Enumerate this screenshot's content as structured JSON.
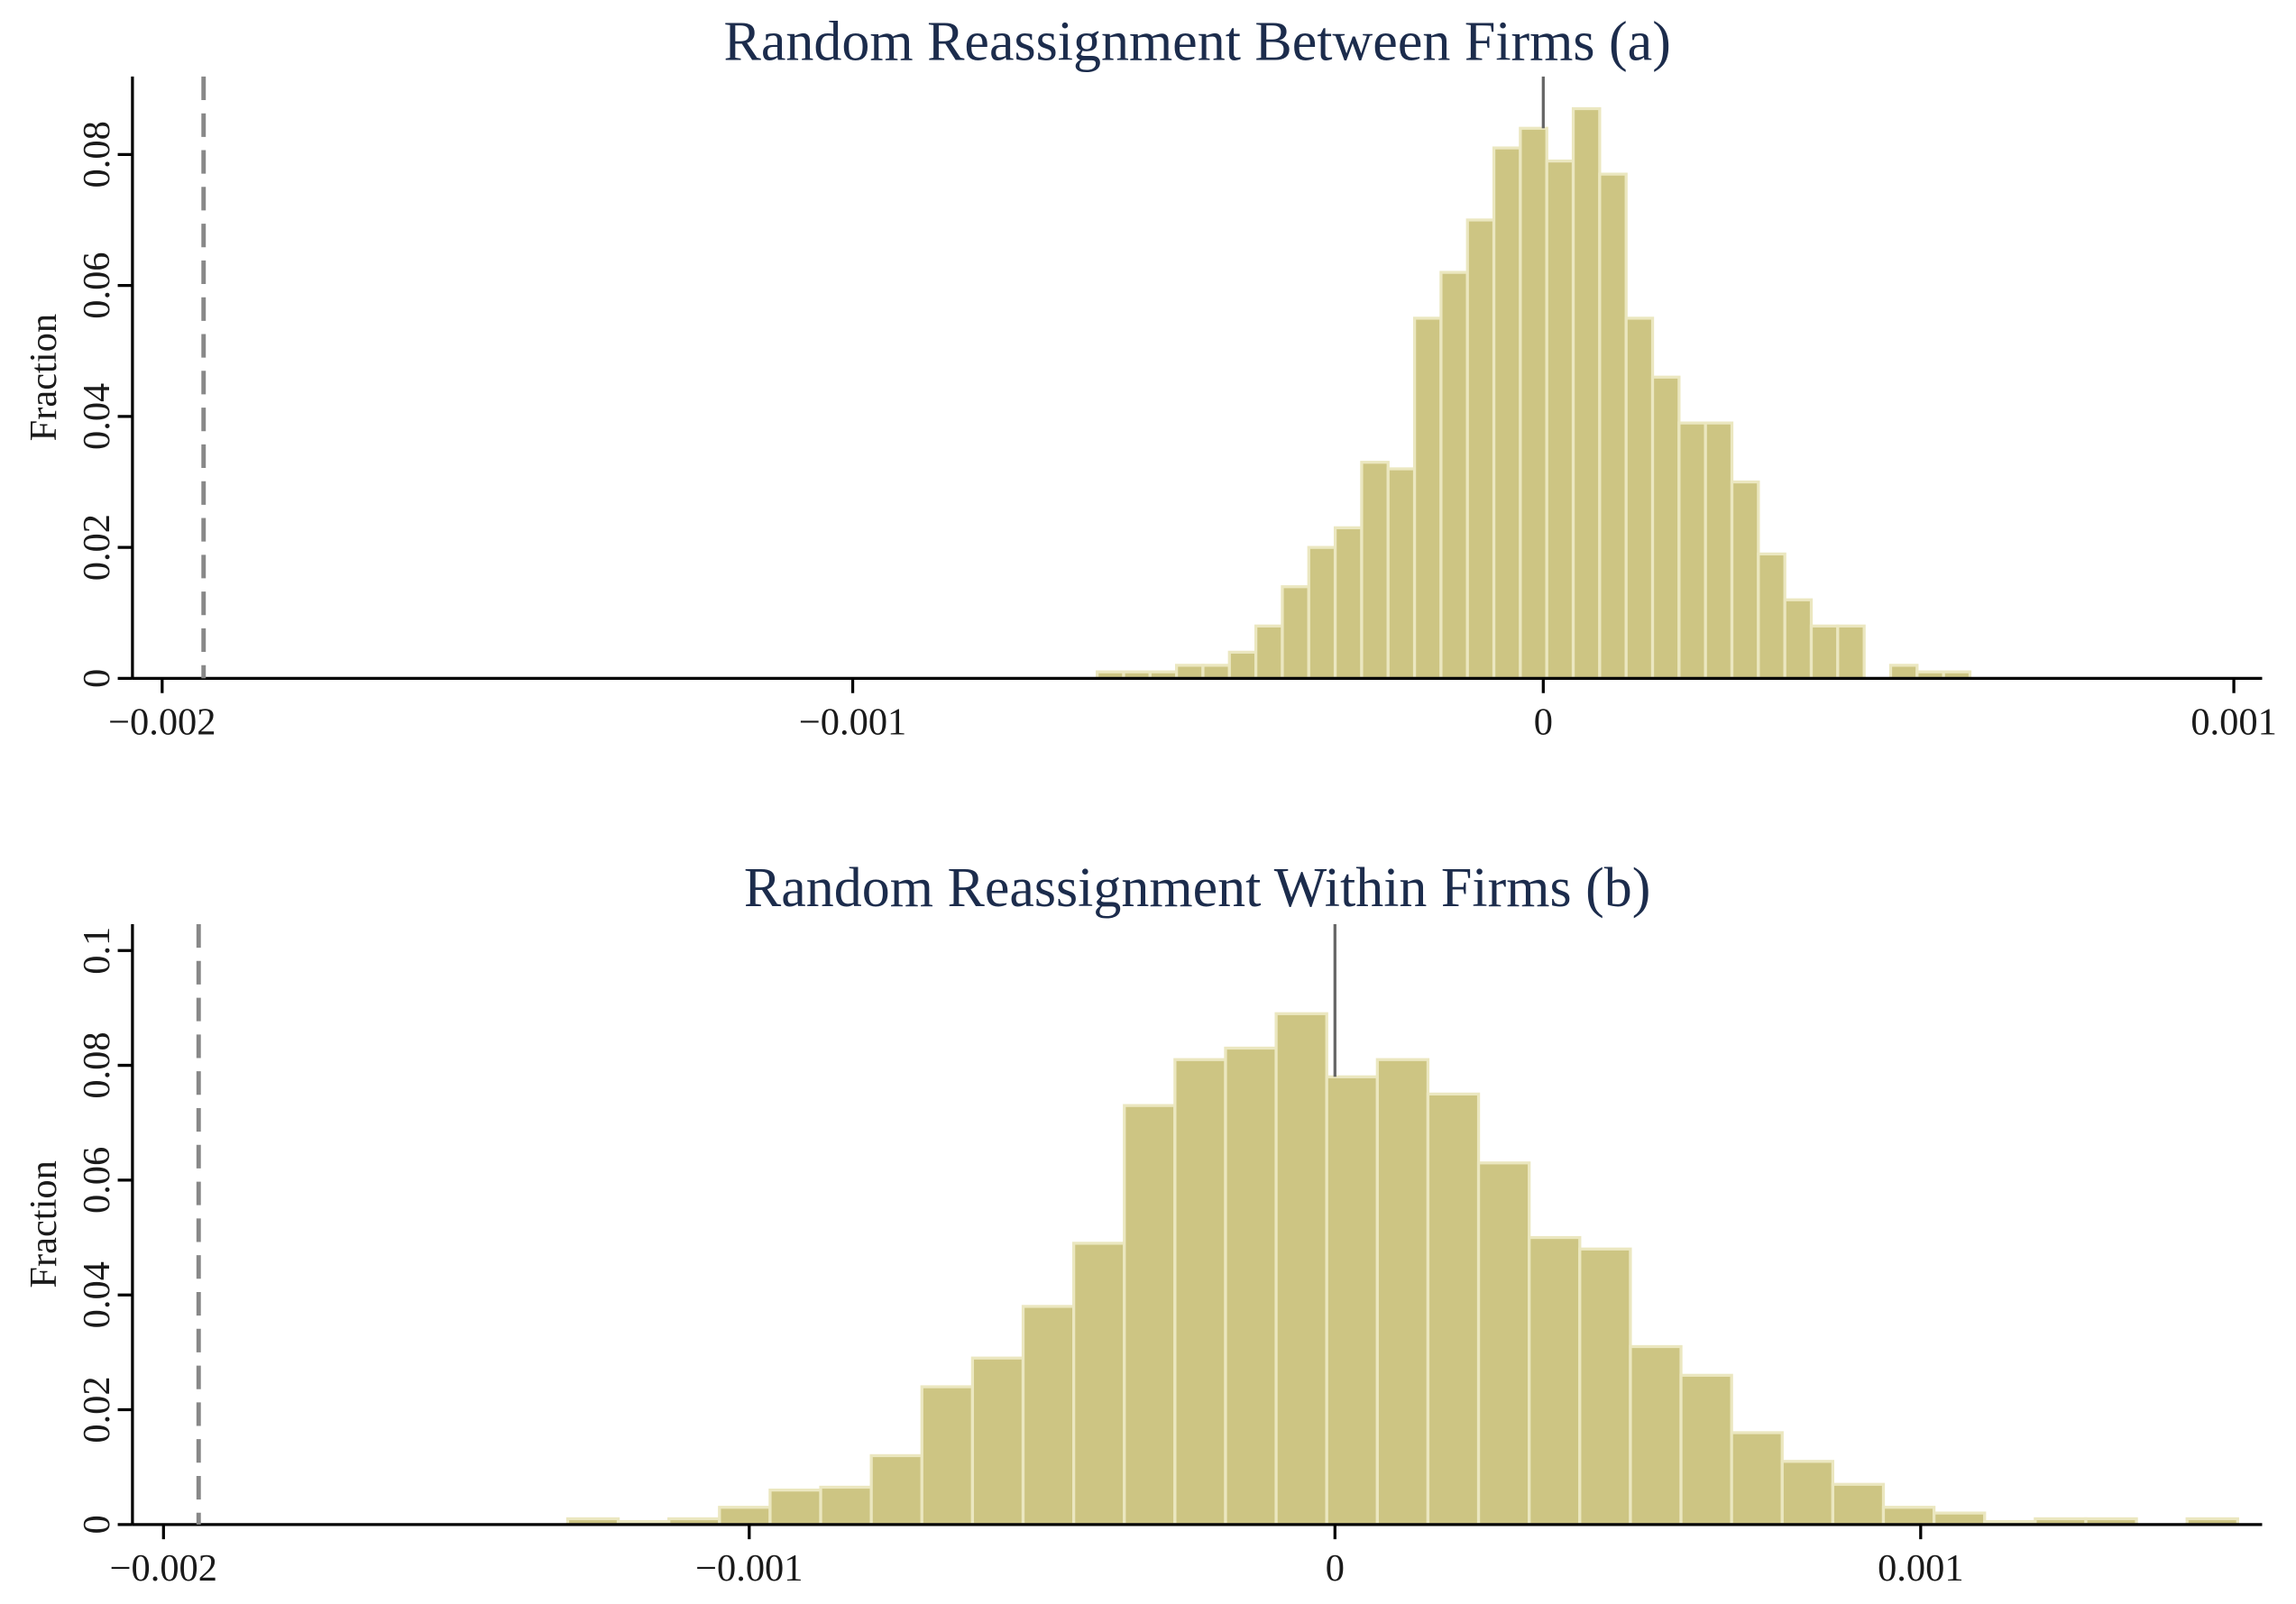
{
  "chart_data": [
    {
      "type": "histogram",
      "title": "Random Reassignment Between Firms (a)",
      "y_label": "Fraction",
      "bins": [
        -0.000646,
        -0.0006077,
        -0.0005694,
        -0.0005311,
        -0.0004928,
        -0.0004545,
        -0.0004162,
        -0.0003779,
        -0.0003396,
        -0.0003013,
        -0.000263,
        -0.0002247,
        -0.0001864,
        -0.0001481,
        -0.0001098,
        -7.15e-05,
        -3.32e-05,
        5.1e-06,
        4.34e-05,
        8.17e-05,
        0.00012,
        0.0001583,
        0.0001966,
        0.0002349,
        0.0002732,
        0.0003115,
        0.0003498,
        0.0003881,
        0.0004264,
        0.0004647,
        0.000503,
        0.0005413,
        0.0005796,
        0.0006179
      ],
      "values": [
        0.001,
        0.001,
        0.001,
        0.002,
        0.002,
        0.004,
        0.008,
        0.014,
        0.02,
        0.023,
        0.033,
        0.032,
        0.055,
        0.062,
        0.07,
        0.081,
        0.084,
        0.079,
        0.087,
        0.077,
        0.055,
        0.046,
        0.039,
        0.039,
        0.03,
        0.019,
        0.012,
        0.008,
        0.008,
        0,
        0.002,
        0.001,
        0.001
      ],
      "color": "#cdc583",
      "xlim": [
        -0.002043,
        0.001041
      ],
      "ylim": [
        0,
        0.0919
      ],
      "xticks": [
        {
          "value": -0.002,
          "label": "−0.002"
        },
        {
          "value": -0.001,
          "label": "−0.001"
        },
        0,
        0.001
      ],
      "yticks": [
        0,
        0.02,
        0.04,
        0.06,
        0.08
      ],
      "reference_lines": [
        {
          "value": -0.00194,
          "style": "dashed"
        },
        {
          "value": 0,
          "style": "solid"
        }
      ]
    },
    {
      "type": "histogram",
      "title": "Random Reassignment Within Firms (b)",
      "y_label": "Fraction",
      "bins": [
        -0.00131,
        -0.0012236,
        -0.0011372,
        -0.0010508,
        -0.0009644,
        -0.000878,
        -0.0007916,
        -0.0007052,
        -0.0006188,
        -0.0005324,
        -0.000446,
        -0.0003596,
        -0.0002732,
        -0.0001868,
        -0.0001004,
        -1.4e-05,
        7.24e-05,
        0.0001588,
        0.0002452,
        0.0003316,
        0.000418,
        0.0005044,
        0.0005908,
        0.0006772,
        0.0007636,
        0.00085,
        0.0009364,
        0.0010228,
        0.0011092,
        0.0011956,
        0.001282,
        0.0013684,
        0.0014548,
        0.0015412
      ],
      "values": [
        0.001,
        0.0005,
        0.001,
        0.003,
        0.006,
        0.0065,
        0.012,
        0.024,
        0.029,
        0.038,
        0.049,
        0.073,
        0.081,
        0.083,
        0.089,
        0.078,
        0.081,
        0.075,
        0.063,
        0.05,
        0.048,
        0.031,
        0.026,
        0.016,
        0.011,
        0.007,
        0.003,
        0.002,
        0.0005,
        0.001,
        0.001,
        0,
        0.001
      ],
      "color": "#cdc583",
      "xlim": [
        -0.002053,
        0.001583
      ],
      "ylim": [
        0,
        0.1046
      ],
      "xticks": [
        {
          "value": -0.002,
          "label": "−0.002"
        },
        {
          "value": -0.001,
          "label": "−0.001"
        },
        0,
        0.001
      ],
      "yticks": [
        0,
        0.02,
        0.04,
        0.06,
        0.08,
        0.1
      ],
      "reference_lines": [
        {
          "value": -0.00194,
          "style": "dashed"
        },
        {
          "value": 0,
          "style": "solid"
        }
      ]
    }
  ]
}
